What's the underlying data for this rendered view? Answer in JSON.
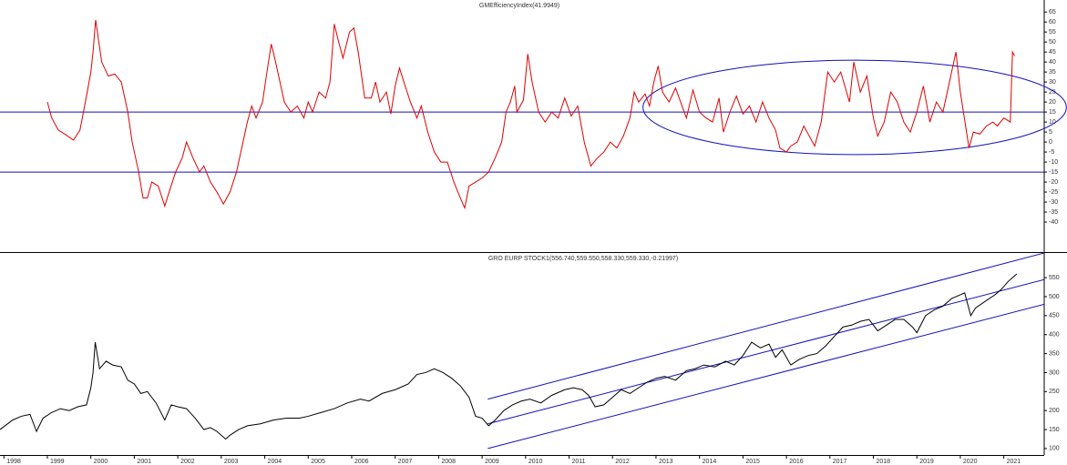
{
  "chart_data": [
    {
      "type": "line",
      "title": "GMEfficiencyIndex(41.9949)",
      "color": "#e00000",
      "xlim": [
        1997.91,
        2021.93
      ],
      "ylim": [
        -55,
        71
      ],
      "yticks": [
        65,
        60,
        55,
        50,
        45,
        40,
        35,
        30,
        25,
        20,
        15,
        10,
        5,
        0,
        -5,
        -10,
        -15,
        -20,
        -25,
        -30,
        -35,
        -40
      ],
      "hlines": [
        15,
        -15
      ],
      "overlay_color": "#1010c0",
      "ellipse": {
        "cx": 2017.57,
        "cy": 17.3,
        "rx": 4.87,
        "ry": 23.6
      },
      "x": [
        1999.0,
        1999.1,
        1999.25,
        1999.4,
        1999.6,
        1999.75,
        1999.9,
        2000.0,
        2000.05,
        2000.11,
        2000.25,
        2000.4,
        2000.55,
        2000.7,
        2000.85,
        2000.95,
        2001.1,
        2001.2,
        2001.3,
        2001.4,
        2001.55,
        2001.7,
        2001.8,
        2001.95,
        2002.1,
        2002.2,
        2002.35,
        2002.5,
        2002.6,
        2002.75,
        2002.9,
        2003.05,
        2003.2,
        2003.35,
        2003.5,
        2003.6,
        2003.7,
        2003.8,
        2003.95,
        2004.05,
        2004.15,
        2004.25,
        2004.35,
        2004.45,
        2004.6,
        2004.75,
        2004.9,
        2005.0,
        2005.1,
        2005.25,
        2005.4,
        2005.5,
        2005.6,
        2005.7,
        2005.8,
        2005.95,
        2006.05,
        2006.15,
        2006.3,
        2006.45,
        2006.55,
        2006.65,
        2006.8,
        2006.9,
        2007.0,
        2007.1,
        2007.2,
        2007.35,
        2007.5,
        2007.6,
        2007.75,
        2007.9,
        2008.05,
        2008.2,
        2008.35,
        2008.5,
        2008.6,
        2008.7,
        2008.85,
        2009.0,
        2009.15,
        2009.3,
        2009.45,
        2009.55,
        2009.65,
        2009.75,
        2009.8,
        2009.95,
        2010.05,
        2010.15,
        2010.3,
        2010.45,
        2010.6,
        2010.75,
        2010.9,
        2011.05,
        2011.2,
        2011.35,
        2011.5,
        2011.65,
        2011.8,
        2011.95,
        2012.1,
        2012.25,
        2012.4,
        2012.5,
        2012.6,
        2012.75,
        2012.85,
        2012.95,
        2013.05,
        2013.15,
        2013.3,
        2013.45,
        2013.6,
        2013.7,
        2013.85,
        2014.0,
        2014.15,
        2014.3,
        2014.45,
        2014.55,
        2014.7,
        2014.85,
        2015.0,
        2015.15,
        2015.3,
        2015.45,
        2015.6,
        2015.75,
        2015.85,
        2016.0,
        2016.1,
        2016.25,
        2016.4,
        2016.55,
        2016.65,
        2016.8,
        2016.95,
        2017.1,
        2017.25,
        2017.45,
        2017.55,
        2017.7,
        2017.85,
        2018.0,
        2018.1,
        2018.25,
        2018.4,
        2018.55,
        2018.7,
        2018.85,
        2019.0,
        2019.15,
        2019.3,
        2019.45,
        2019.6,
        2019.75,
        2019.9,
        2020.0,
        2020.2,
        2020.3,
        2020.45,
        2020.6,
        2020.75,
        2020.85,
        2021.0,
        2021.15,
        2021.2,
        2021.25
      ],
      "values": [
        20,
        12,
        6,
        4,
        1,
        6,
        23,
        35,
        45,
        61,
        40,
        33,
        34,
        30,
        15,
        0,
        -15,
        -28,
        -28,
        -20,
        -22,
        -32,
        -25,
        -15,
        -8,
        0,
        -8,
        -15,
        -12,
        -20,
        -25,
        -31,
        -25,
        -15,
        0,
        10,
        18,
        12,
        20,
        35,
        49,
        40,
        30,
        20,
        15,
        18,
        12,
        20,
        15,
        25,
        22,
        30,
        59,
        50,
        42,
        55,
        57,
        45,
        22,
        22,
        30,
        20,
        25,
        14,
        28,
        37,
        30,
        20,
        12,
        18,
        5,
        -5,
        -10,
        -10,
        -20,
        -28,
        -33,
        -22,
        -20,
        -18,
        -15,
        -8,
        0,
        15,
        20,
        28,
        15,
        21,
        44,
        30,
        15,
        10,
        15,
        12,
        22,
        13,
        18,
        0,
        -12,
        -8,
        -5,
        0,
        -3,
        3,
        12,
        25,
        20,
        24,
        18,
        30,
        38,
        25,
        20,
        27,
        18,
        12,
        26,
        15,
        12,
        10,
        22,
        5,
        15,
        23,
        14,
        18,
        10,
        20,
        12,
        6,
        -3,
        -5,
        -2,
        0,
        8,
        2,
        -2,
        10,
        35,
        30,
        35,
        20,
        40,
        25,
        33,
        12,
        3,
        10,
        25,
        20,
        10,
        5,
        15,
        28,
        10,
        20,
        15,
        30,
        45,
        25,
        -3,
        5,
        4,
        8,
        10,
        8,
        12,
        10,
        45,
        43
      ]
    },
    {
      "type": "line",
      "title": "GRO EURP STOCK1(556.740,559.550,558.330,559.330,-0.21997)",
      "color": "#000000",
      "xlim": [
        1997.91,
        2021.93
      ],
      "ylim": [
        83,
        615
      ],
      "xticks": [
        1998,
        1999,
        2000,
        2001,
        2002,
        2003,
        2004,
        2005,
        2006,
        2007,
        2008,
        2009,
        2010,
        2011,
        2012,
        2013,
        2014,
        2015,
        2016,
        2017,
        2018,
        2019,
        2020,
        2021
      ],
      "yticks": [
        550,
        500,
        450,
        400,
        350,
        300,
        250,
        200,
        150,
        100
      ],
      "overlay_color": "#1010c0",
      "channels": [
        {
          "x": [
            2009.13,
            2021.93
          ],
          "values": [
            230,
            615
          ]
        },
        {
          "x": [
            2009.13,
            2021.93
          ],
          "values": [
            165,
            545
          ]
        },
        {
          "x": [
            2009.13,
            2021.93
          ],
          "values": [
            100,
            480
          ]
        }
      ],
      "x": [
        1997.91,
        1998.2,
        1998.4,
        1998.6,
        1998.75,
        1998.9,
        1999.1,
        1999.3,
        1999.5,
        1999.7,
        1999.9,
        2000.0,
        2000.05,
        2000.1,
        2000.2,
        2000.35,
        2000.5,
        2000.7,
        2000.85,
        2001.0,
        2001.15,
        2001.3,
        2001.5,
        2001.7,
        2001.85,
        2002.0,
        2002.2,
        2002.4,
        2002.6,
        2002.75,
        2002.9,
        2003.1,
        2003.2,
        2003.4,
        2003.6,
        2003.9,
        2004.2,
        2004.5,
        2004.8,
        2005.0,
        2005.3,
        2005.6,
        2005.9,
        2006.2,
        2006.4,
        2006.7,
        2007.0,
        2007.3,
        2007.5,
        2007.7,
        2007.9,
        2008.1,
        2008.3,
        2008.5,
        2008.7,
        2008.85,
        2009.0,
        2009.15,
        2009.3,
        2009.5,
        2009.7,
        2009.9,
        2010.1,
        2010.35,
        2010.6,
        2010.9,
        2011.1,
        2011.3,
        2011.45,
        2011.6,
        2011.8,
        2012.0,
        2012.2,
        2012.4,
        2012.6,
        2012.8,
        2013.0,
        2013.2,
        2013.45,
        2013.7,
        2013.9,
        2014.1,
        2014.35,
        2014.6,
        2014.8,
        2015.0,
        2015.2,
        2015.4,
        2015.6,
        2015.75,
        2015.9,
        2016.1,
        2016.3,
        2016.5,
        2016.7,
        2016.9,
        2017.1,
        2017.3,
        2017.5,
        2017.7,
        2017.9,
        2018.1,
        2018.3,
        2018.5,
        2018.7,
        2018.9,
        2019.0,
        2019.2,
        2019.4,
        2019.6,
        2019.8,
        2020.0,
        2020.1,
        2020.24,
        2020.35,
        2020.6,
        2020.8,
        2020.95,
        2021.1,
        2021.3
      ],
      "values": [
        150,
        175,
        185,
        190,
        145,
        180,
        195,
        205,
        200,
        210,
        215,
        260,
        300,
        380,
        310,
        330,
        320,
        315,
        280,
        270,
        245,
        250,
        220,
        175,
        215,
        210,
        205,
        180,
        150,
        155,
        145,
        125,
        135,
        150,
        160,
        165,
        175,
        180,
        180,
        185,
        195,
        205,
        220,
        230,
        225,
        245,
        255,
        270,
        295,
        300,
        310,
        300,
        285,
        265,
        235,
        185,
        180,
        160,
        175,
        200,
        215,
        225,
        230,
        220,
        240,
        255,
        260,
        255,
        240,
        210,
        215,
        235,
        255,
        245,
        260,
        275,
        285,
        290,
        280,
        305,
        310,
        320,
        315,
        330,
        320,
        345,
        380,
        365,
        375,
        340,
        360,
        320,
        335,
        345,
        350,
        370,
        395,
        420,
        425,
        435,
        440,
        410,
        425,
        440,
        440,
        420,
        405,
        450,
        465,
        475,
        495,
        505,
        510,
        450,
        470,
        490,
        505,
        520,
        540,
        560
      ]
    }
  ]
}
